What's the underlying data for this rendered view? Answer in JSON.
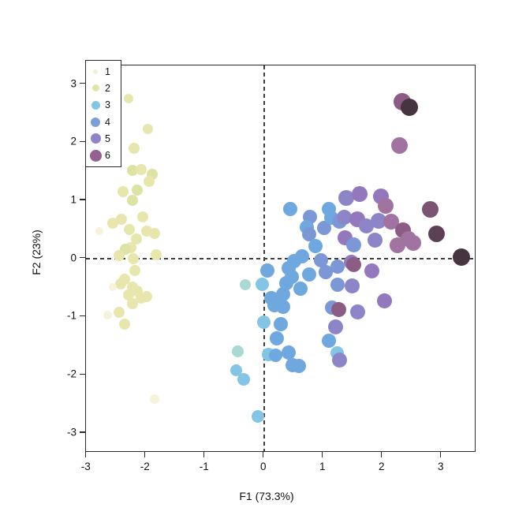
{
  "figure": {
    "x_axis": {
      "label": "F1 (73.3%)"
    },
    "y_axis": {
      "label": "F2 (23%)"
    }
  },
  "chart_data": {
    "type": "scatter",
    "title": "",
    "xlabel": "F1 (73.3%)",
    "ylabel": "F2 (23%)",
    "xlim": [
      -3.01,
      3.59
    ],
    "ylim": [
      -3.34,
      3.32
    ],
    "x_ticks": [
      -3,
      -2,
      -1,
      0,
      1,
      2,
      3
    ],
    "y_ticks": [
      3,
      2,
      1,
      0,
      -1,
      -2,
      -3
    ],
    "grid": false,
    "reference_lines": {
      "vertical_x": 0,
      "horizontal_y": 0,
      "style": "dashed"
    },
    "legend_position": "top-left",
    "legend": {
      "entries": [
        {
          "label": "1",
          "color": "#f3efd2",
          "r": 3
        },
        {
          "label": "2",
          "color": "#e3e4a6",
          "r": 4.5
        },
        {
          "label": "3",
          "color": "#85c6e2",
          "r": 5.5
        },
        {
          "label": "4",
          "color": "#7b9fd9",
          "r": 6
        },
        {
          "label": "5",
          "color": "#8f83c3",
          "r": 6.5
        },
        {
          "label": "6",
          "color": "#95618f",
          "r": 7.5
        }
      ]
    },
    "palette": [
      "#f6f3da",
      "#e7e7ad",
      "#dce3a3",
      "#aad9d4",
      "#84c4e4",
      "#6fa8de",
      "#7b97d6",
      "#8c86c9",
      "#9478bd",
      "#a173a0",
      "#8d5c84",
      "#7a5472",
      "#5c4155",
      "#463440"
    ],
    "point_format": [
      "x",
      "y",
      "radius_px",
      "palette_index"
    ],
    "points": [
      [
        -2.29,
        2.75,
        6,
        1
      ],
      [
        -1.96,
        2.23,
        6.5,
        1
      ],
      [
        -2.2,
        1.9,
        7,
        1
      ],
      [
        -2.23,
        1.51,
        7,
        2
      ],
      [
        -2.08,
        1.53,
        7,
        1
      ],
      [
        -1.89,
        1.45,
        7,
        2
      ],
      [
        -1.95,
        1.33,
        7,
        1
      ],
      [
        -2.39,
        1.15,
        7,
        1
      ],
      [
        -2.15,
        1.18,
        7,
        2
      ],
      [
        -2.23,
        1.0,
        7,
        2
      ],
      [
        -2.41,
        0.68,
        7,
        1
      ],
      [
        -2.56,
        0.61,
        7,
        1
      ],
      [
        -2.05,
        0.71,
        7,
        1
      ],
      [
        -2.79,
        0.47,
        5,
        0
      ],
      [
        -2.28,
        0.5,
        7,
        1
      ],
      [
        -1.99,
        0.47,
        7,
        1
      ],
      [
        -1.85,
        0.43,
        7,
        1
      ],
      [
        -2.16,
        0.33,
        7,
        1
      ],
      [
        -2.25,
        0.19,
        7,
        1
      ],
      [
        -2.35,
        0.16,
        7,
        2
      ],
      [
        -2.45,
        0.05,
        7,
        1
      ],
      [
        -2.21,
        0.0,
        7,
        1
      ],
      [
        -1.83,
        0.07,
        7,
        1
      ],
      [
        -2.19,
        -0.2,
        7,
        1
      ],
      [
        -2.36,
        -0.35,
        7,
        1
      ],
      [
        -2.43,
        -0.44,
        7,
        1
      ],
      [
        -2.56,
        -0.49,
        5,
        0
      ],
      [
        -2.23,
        -0.49,
        7,
        1
      ],
      [
        -2.15,
        -0.56,
        7,
        1
      ],
      [
        -2.29,
        -0.63,
        7,
        1
      ],
      [
        -2.08,
        -0.68,
        7,
        1
      ],
      [
        -1.99,
        -0.66,
        7,
        1
      ],
      [
        -2.23,
        -0.77,
        7,
        1
      ],
      [
        -2.45,
        -0.92,
        7,
        1
      ],
      [
        -2.65,
        -0.97,
        5.5,
        0
      ],
      [
        -2.36,
        -1.13,
        7,
        1
      ],
      [
        -1.85,
        -2.42,
        6,
        0
      ],
      [
        -0.44,
        -1.6,
        7.5,
        3
      ],
      [
        -0.47,
        -1.92,
        7.5,
        4
      ],
      [
        -0.34,
        -2.08,
        8,
        4
      ],
      [
        -0.1,
        -2.72,
        8,
        4
      ],
      [
        -0.32,
        -0.45,
        7,
        3
      ],
      [
        0.0,
        -1.1,
        8.5,
        4
      ],
      [
        0.06,
        -0.21,
        9,
        5
      ],
      [
        -0.03,
        -0.45,
        8.5,
        4
      ],
      [
        0.44,
        0.85,
        9,
        5
      ],
      [
        0.77,
        0.72,
        9,
        6
      ],
      [
        1.1,
        0.85,
        9,
        5
      ],
      [
        0.72,
        0.54,
        9,
        5
      ],
      [
        1.01,
        0.53,
        9,
        6
      ],
      [
        1.13,
        0.7,
        9,
        5
      ],
      [
        1.28,
        0.64,
        9.5,
        6
      ],
      [
        0.76,
        0.42,
        9,
        6
      ],
      [
        0.87,
        0.22,
        9,
        5
      ],
      [
        0.64,
        0.04,
        9,
        5
      ],
      [
        0.96,
        -0.03,
        9,
        6
      ],
      [
        0.42,
        -0.16,
        9,
        5
      ],
      [
        0.51,
        -0.04,
        9,
        5
      ],
      [
        0.47,
        -0.31,
        9,
        5
      ],
      [
        0.76,
        -0.27,
        9,
        5
      ],
      [
        1.04,
        -0.24,
        9,
        6
      ],
      [
        0.37,
        -0.42,
        9,
        5
      ],
      [
        0.61,
        -0.52,
        9,
        5
      ],
      [
        0.32,
        -0.61,
        9,
        5
      ],
      [
        0.12,
        -0.68,
        9,
        5
      ],
      [
        0.17,
        -0.81,
        9,
        5
      ],
      [
        0.32,
        -0.83,
        9,
        5
      ],
      [
        0.28,
        -1.13,
        9,
        5
      ],
      [
        0.22,
        -1.37,
        9,
        5
      ],
      [
        0.08,
        -1.65,
        8.5,
        4
      ],
      [
        0.19,
        -1.67,
        8.5,
        5
      ],
      [
        0.42,
        -1.62,
        9,
        5
      ],
      [
        0.48,
        -1.84,
        9,
        5
      ],
      [
        0.59,
        -1.85,
        9,
        5
      ],
      [
        1.24,
        -0.14,
        9,
        6
      ],
      [
        1.48,
        -0.06,
        9.5,
        8
      ],
      [
        1.51,
        -0.11,
        9.5,
        10
      ],
      [
        1.24,
        -0.45,
        9,
        6
      ],
      [
        1.49,
        -0.47,
        9.5,
        7
      ],
      [
        1.82,
        -0.22,
        9.5,
        8
      ],
      [
        1.15,
        -0.85,
        9,
        6
      ],
      [
        1.26,
        -0.88,
        9.5,
        10
      ],
      [
        1.58,
        -0.92,
        9.5,
        7
      ],
      [
        1.21,
        -1.17,
        9.5,
        7
      ],
      [
        1.1,
        -1.42,
        9,
        5
      ],
      [
        1.23,
        -1.62,
        8.5,
        4
      ],
      [
        1.28,
        -1.75,
        9.5,
        7
      ],
      [
        2.04,
        -0.73,
        9.5,
        8
      ],
      [
        1.39,
        1.04,
        10,
        7
      ],
      [
        1.61,
        1.11,
        10,
        8
      ],
      [
        1.97,
        1.07,
        10,
        8
      ],
      [
        2.05,
        0.9,
        10,
        9
      ],
      [
        1.35,
        0.71,
        9.5,
        7
      ],
      [
        1.57,
        0.68,
        10,
        8
      ],
      [
        1.73,
        0.56,
        9.5,
        7
      ],
      [
        1.93,
        0.65,
        10,
        7
      ],
      [
        2.15,
        0.63,
        10,
        9
      ],
      [
        2.35,
        0.48,
        10,
        10
      ],
      [
        2.26,
        0.23,
        10,
        9
      ],
      [
        2.44,
        0.34,
        10,
        9
      ],
      [
        1.37,
        0.36,
        9.5,
        8
      ],
      [
        1.51,
        0.23,
        9.5,
        6
      ],
      [
        1.88,
        0.32,
        9.5,
        7
      ],
      [
        2.52,
        0.27,
        10,
        9
      ],
      [
        2.29,
        1.95,
        10.5,
        9
      ],
      [
        2.33,
        2.69,
        11,
        10
      ],
      [
        2.46,
        2.6,
        11,
        13
      ],
      [
        2.81,
        0.84,
        10.5,
        11
      ],
      [
        2.92,
        0.43,
        10.5,
        12
      ],
      [
        3.33,
        0.02,
        11,
        13
      ]
    ]
  }
}
